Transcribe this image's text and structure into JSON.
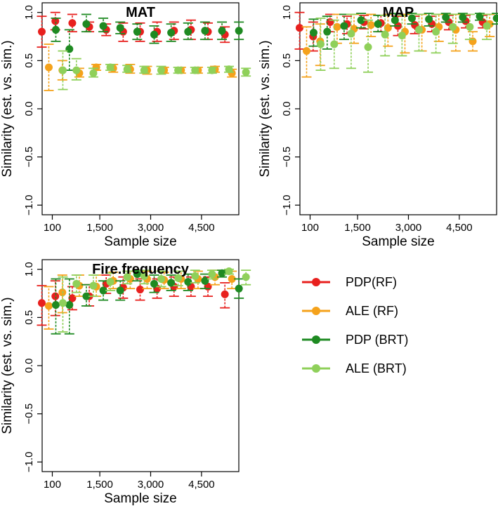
{
  "colors": {
    "PDP(RF)": "#e8201e",
    "ALE (RF)": "#f5a21b",
    "PDP (BRT)": "#1e8a22",
    "ALE (BRT)": "#8fd05a"
  },
  "legend": [
    "PDP(RF)",
    "ALE (RF)",
    "PDP (BRT)",
    "ALE (BRT)"
  ],
  "chart_data": [
    {
      "type": "scatter",
      "title": "MAT",
      "xlabel": "Sample size",
      "ylabel": "Similarity (est. vs. sim.)",
      "ylim": [
        -1.1,
        1.1
      ],
      "xlim": [
        -200,
        5600
      ],
      "xticks": [
        100,
        1500,
        3000,
        4500
      ],
      "xtick_labels": [
        "100",
        "1,500",
        "3,000",
        "4,500"
      ],
      "yticks": [
        -1.0,
        -0.5,
        0.0,
        0.5,
        1.0
      ],
      "ytick_labels": [
        "−1.0",
        "−0.5",
        "0.0",
        "0.5",
        "1.0"
      ],
      "x": [
        100,
        500,
        1000,
        1500,
        2000,
        2500,
        3000,
        3500,
        4000,
        4500,
        5000,
        5500
      ],
      "series": [
        {
          "name": "PDP(RF)",
          "offset": -15,
          "y": [
            0.8,
            0.91,
            0.89,
            0.85,
            0.82,
            0.8,
            0.8,
            0.8,
            0.81,
            0.82,
            0.8,
            0.77
          ],
          "lo": [
            0.64,
            0.82,
            0.8,
            0.8,
            0.76,
            0.7,
            0.7,
            0.7,
            0.72,
            0.72,
            0.72,
            0.69
          ],
          "hi": [
            0.96,
            1.0,
            0.98,
            0.9,
            0.88,
            0.89,
            0.89,
            0.9,
            0.9,
            0.92,
            0.89,
            0.85
          ]
        },
        {
          "name": "ALE (RF)",
          "offset": -5,
          "y": [
            0.43,
            0.4,
            0.37,
            0.43,
            0.42,
            0.41,
            0.4,
            0.4,
            0.4,
            0.4,
            0.41,
            0.37
          ],
          "lo": [
            0.19,
            0.3,
            0.33,
            0.4,
            0.38,
            0.37,
            0.36,
            0.37,
            0.37,
            0.37,
            0.38,
            0.33
          ],
          "hi": [
            0.67,
            0.5,
            0.42,
            0.46,
            0.46,
            0.46,
            0.44,
            0.43,
            0.43,
            0.43,
            0.44,
            0.41
          ]
        },
        {
          "name": "PDP (BRT)",
          "offset": 5,
          "y": [
            0.82,
            0.62,
            0.88,
            0.86,
            0.84,
            0.8,
            0.77,
            0.79,
            0.8,
            0.81,
            0.81,
            0.81
          ],
          "lo": [
            0.7,
            0.4,
            0.8,
            0.8,
            0.78,
            0.72,
            0.68,
            0.7,
            0.72,
            0.72,
            0.72,
            0.72
          ],
          "hi": [
            0.94,
            0.82,
            0.98,
            0.94,
            0.9,
            0.88,
            0.86,
            0.88,
            0.89,
            0.9,
            0.9,
            0.9
          ]
        },
        {
          "name": "ALE (BRT)",
          "offset": 15,
          "y": [
            0.4,
            0.4,
            0.37,
            0.43,
            0.41,
            0.4,
            0.4,
            0.4,
            0.4,
            0.4,
            0.41,
            0.38
          ],
          "lo": [
            0.2,
            0.3,
            0.33,
            0.4,
            0.38,
            0.37,
            0.36,
            0.37,
            0.37,
            0.37,
            0.38,
            0.34
          ],
          "hi": [
            0.6,
            0.52,
            0.42,
            0.46,
            0.45,
            0.44,
            0.44,
            0.43,
            0.43,
            0.43,
            0.44,
            0.42
          ]
        }
      ]
    },
    {
      "type": "scatter",
      "title": "MAP",
      "xlabel": "Sample size",
      "ylabel": "Similarity (est. vs. sim.)",
      "ylim": [
        -1.1,
        1.1
      ],
      "xlim": [
        -200,
        5600
      ],
      "xticks": [
        100,
        1500,
        3000,
        4500
      ],
      "xtick_labels": [
        "100",
        "1,500",
        "3,000",
        "4,500"
      ],
      "yticks": [
        -1.0,
        -0.5,
        0.0,
        0.5,
        1.0
      ],
      "ytick_labels": [
        "−1.0",
        "−0.5",
        "0.0",
        "0.5",
        "1.0"
      ],
      "x": [
        100,
        500,
        1000,
        1500,
        2000,
        2500,
        3000,
        3500,
        4000,
        4500,
        5000,
        5500
      ],
      "series": [
        {
          "name": "PDP(RF)",
          "offset": -15,
          "y": [
            0.84,
            0.75,
            0.9,
            0.88,
            0.9,
            0.89,
            0.86,
            0.87,
            0.88,
            0.9,
            0.91,
            0.9
          ],
          "lo": [
            0.62,
            0.6,
            0.8,
            0.78,
            0.83,
            0.8,
            0.76,
            0.78,
            0.8,
            0.82,
            0.84,
            0.84
          ],
          "hi": [
            1.0,
            0.9,
            0.98,
            0.96,
            0.97,
            0.97,
            0.96,
            0.96,
            0.96,
            0.97,
            0.97,
            0.97
          ]
        },
        {
          "name": "ALE (RF)",
          "offset": -5,
          "y": [
            0.6,
            0.7,
            0.85,
            0.83,
            0.87,
            0.84,
            0.8,
            0.82,
            0.85,
            0.82,
            0.7,
            0.88
          ],
          "lo": [
            0.33,
            0.45,
            0.68,
            0.68,
            0.75,
            0.65,
            0.58,
            0.6,
            0.7,
            0.6,
            0.6,
            0.75
          ],
          "hi": [
            0.85,
            0.88,
            0.98,
            0.98,
            0.98,
            0.98,
            0.98,
            0.98,
            0.98,
            0.98,
            0.8,
            0.98
          ]
        },
        {
          "name": "PDP (BRT)",
          "offset": 5,
          "y": [
            0.79,
            0.8,
            0.86,
            0.92,
            0.88,
            0.92,
            0.94,
            0.93,
            0.95,
            0.95,
            0.96,
            0.94
          ],
          "lo": [
            0.65,
            0.62,
            0.72,
            0.84,
            0.8,
            0.86,
            0.88,
            0.86,
            0.9,
            0.9,
            0.92,
            0.88
          ],
          "hi": [
            0.93,
            0.96,
            0.98,
            0.99,
            0.97,
            0.99,
            0.99,
            0.99,
            0.99,
            0.99,
            0.99,
            0.99
          ]
        },
        {
          "name": "ALE (BRT)",
          "offset": 15,
          "y": [
            0.67,
            0.67,
            0.78,
            0.64,
            0.77,
            0.76,
            0.82,
            0.8,
            0.85,
            0.85,
            0.86,
            0.85
          ],
          "lo": [
            0.4,
            0.42,
            0.42,
            0.38,
            0.55,
            0.55,
            0.6,
            0.58,
            0.68,
            0.72,
            0.72,
            0.7
          ],
          "hi": [
            0.94,
            0.92,
            0.98,
            0.92,
            0.97,
            0.97,
            0.98,
            0.98,
            0.98,
            0.98,
            0.98,
            0.98
          ]
        }
      ]
    },
    {
      "type": "scatter",
      "title": "Fire.frequency",
      "xlabel": "Sample size",
      "ylabel": "Similarity (est. vs. sim.)",
      "ylim": [
        -1.1,
        1.1
      ],
      "xlim": [
        -200,
        5600
      ],
      "xticks": [
        100,
        1500,
        3000,
        4500
      ],
      "xtick_labels": [
        "100",
        "1,500",
        "3,000",
        "4,500"
      ],
      "yticks": [
        -1.0,
        -0.5,
        0.0,
        0.5,
        1.0
      ],
      "ytick_labels": [
        "−1.0",
        "−0.5",
        "0.0",
        "0.5",
        "1.0"
      ],
      "x": [
        100,
        500,
        1000,
        1500,
        2000,
        2500,
        3000,
        3500,
        4000,
        4500,
        5000,
        5500
      ],
      "series": [
        {
          "name": "PDP(RF)",
          "offset": -15,
          "y": [
            0.65,
            0.72,
            0.7,
            0.72,
            0.85,
            0.81,
            0.79,
            0.8,
            0.82,
            0.82,
            0.82,
            0.74
          ],
          "lo": [
            0.42,
            0.52,
            0.58,
            0.62,
            0.75,
            0.7,
            0.68,
            0.7,
            0.72,
            0.72,
            0.72,
            0.6
          ],
          "hi": [
            0.83,
            0.88,
            0.82,
            0.84,
            0.94,
            0.92,
            0.9,
            0.9,
            0.92,
            0.92,
            0.92,
            0.86
          ]
        },
        {
          "name": "ALE (RF)",
          "offset": -5,
          "y": [
            0.62,
            0.76,
            0.83,
            0.82,
            0.88,
            0.9,
            0.9,
            0.89,
            0.9,
            0.9,
            0.92,
            0.9
          ],
          "lo": [
            0.38,
            0.55,
            0.72,
            0.72,
            0.8,
            0.8,
            0.8,
            0.8,
            0.8,
            0.8,
            0.84,
            0.8
          ],
          "hi": [
            0.82,
            0.94,
            0.94,
            0.94,
            0.97,
            0.98,
            0.98,
            0.97,
            0.98,
            0.98,
            0.99,
            0.98
          ]
        },
        {
          "name": "PDP (BRT)",
          "offset": 5,
          "y": [
            0.63,
            0.63,
            0.72,
            0.78,
            0.78,
            0.95,
            0.85,
            0.86,
            0.87,
            0.88,
            0.96,
            0.8
          ],
          "lo": [
            0.33,
            0.33,
            0.62,
            0.68,
            0.68,
            0.88,
            0.76,
            0.78,
            0.78,
            0.8,
            0.92,
            0.7
          ],
          "hi": [
            0.9,
            0.9,
            0.84,
            0.88,
            0.88,
            0.99,
            0.94,
            0.94,
            0.95,
            0.95,
            0.99,
            0.9
          ]
        },
        {
          "name": "ALE (BRT)",
          "offset": 15,
          "y": [
            0.65,
            0.85,
            0.83,
            0.87,
            0.92,
            0.93,
            0.9,
            0.91,
            0.93,
            0.95,
            0.98,
            0.92
          ],
          "lo": [
            0.35,
            0.76,
            0.72,
            0.78,
            0.85,
            0.85,
            0.82,
            0.83,
            0.86,
            0.9,
            0.95,
            0.84
          ],
          "hi": [
            0.92,
            0.94,
            0.94,
            0.96,
            0.98,
            0.99,
            0.98,
            0.98,
            0.99,
            0.99,
            1.0,
            0.99
          ]
        }
      ]
    }
  ]
}
